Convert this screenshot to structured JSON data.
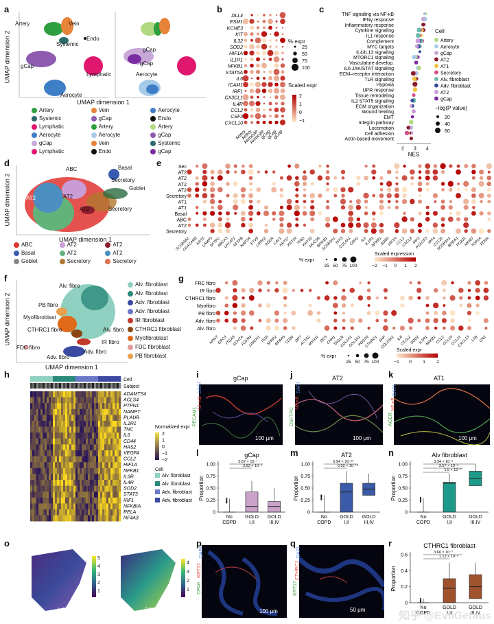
{
  "panel_labels": [
    "a",
    "b",
    "c",
    "d",
    "e",
    "f",
    "g",
    "h",
    "i",
    "j",
    "k",
    "l",
    "m",
    "n",
    "o",
    "p",
    "q",
    "r"
  ],
  "a": {
    "xlabel": "UMAP dimension 1",
    "ylabel": "UMAP dimension 2",
    "cluster_labels": [
      "Artery",
      "Vein",
      "Systemic",
      "Endo",
      "gCap",
      "Lymphatic",
      "Aerocyte"
    ],
    "right_cluster_labels": [
      "gCap",
      "gCap",
      "Aerocyte"
    ],
    "legend": [
      {
        "name": "Artery",
        "color": "#2e9e3e"
      },
      {
        "name": "Vein",
        "color": "#e8833a"
      },
      {
        "name": "Aerocyte",
        "color": "#3d7ec7"
      },
      {
        "name": "Systemic",
        "color": "#2b6a6b"
      },
      {
        "name": "gCap",
        "color": "#8e5bb0"
      },
      {
        "name": "Endo",
        "color": "#111111"
      },
      {
        "name": "Lymphatic",
        "color": "#e0176e"
      },
      {
        "name": "Artery",
        "color": "#2e9e3e"
      },
      {
        "name": "Artery",
        "color": "#b0d982"
      },
      {
        "name": "Aerocyte",
        "color": "#3d7ec7"
      },
      {
        "name": "Aerocyte",
        "color": "#a6cbe8"
      },
      {
        "name": "gCap",
        "color": "#8e5bb0"
      },
      {
        "name": "gCap",
        "color": "#c8a8d8"
      },
      {
        "name": "Vein",
        "color": "#e8833a"
      },
      {
        "name": "Systemic",
        "color": "#2b6a6b"
      },
      {
        "name": "Lymphatic",
        "color": "#e0176e"
      },
      {
        "name": "Endo",
        "color": "#111111"
      },
      {
        "name": "gCap",
        "color": "#7a2da0"
      }
    ]
  },
  "b": {
    "genes": [
      "DLL4",
      "ESM1",
      "KCNE3",
      "KIT",
      "IL32",
      "SOD2",
      "HIF1A",
      "IL1R1",
      "NFKB1",
      "STAT5A",
      "IL6",
      "ICAM1",
      "IRF1",
      "CX3CL1",
      "IL4R",
      "CCL2",
      "CSF3",
      "CXCL10"
    ],
    "columns": [
      "Artery",
      "Artery",
      "Aerocyte",
      "Aerocyte",
      "gCap",
      "gCap",
      "gCap"
    ],
    "size_legend_title": "% expr",
    "size_legend": [
      "25",
      "50",
      "75",
      "100"
    ],
    "color_legend_title": "Scaled expr",
    "color_legend": [
      "2",
      "1",
      "0",
      "−1"
    ]
  },
  "c": {
    "pathways": [
      "TNF signaling via NF-κB",
      "IFNγ response",
      "Inflammatory response",
      "Cytokine signaling",
      "IL1 response",
      "Complement",
      "MYC targets",
      "IL4/IL13 signaling",
      "MTORC1 signaling",
      "Vasculature develop.",
      "IL6 JAK/STAT signaling",
      "ECM–receptor interaction",
      "TLR signaling",
      "Hypoxia",
      "UPR response",
      "Tissue remodeling",
      "IL2 STAT5 signaling",
      "ECM organization",
      "Wound healing",
      "EMT",
      "Integrin pathway",
      "Locomotion",
      "Cell adhesion",
      "Actin-based movement"
    ],
    "nes": [
      3.9,
      3.8,
      3.8,
      3.7,
      3.5,
      3.6,
      3.4,
      3.4,
      3.3,
      3.1,
      3.3,
      3.1,
      3.2,
      3.0,
      3.0,
      2.9,
      2.9,
      2.8,
      2.9,
      2.8,
      2.7,
      2.7,
      2.7,
      2.7
    ],
    "xlabel": "NES",
    "xticks": [
      "2",
      "3",
      "4"
    ],
    "ylabel": "Pathway",
    "cell_legend_title": "Cell",
    "cell_legend": [
      {
        "name": "Artery",
        "color": "#b0d982"
      },
      {
        "name": "Aerocyte",
        "color": "#a6cbe8"
      },
      {
        "name": "gCap",
        "color": "#c8a8d8"
      },
      {
        "name": "AT2",
        "color": "#8a1c2b"
      },
      {
        "name": "AT1",
        "color": "#f0c040"
      },
      {
        "name": "Secretory",
        "color": "#d6508c"
      },
      {
        "name": "Alv. fibroblast",
        "color": "#6fb9a8"
      },
      {
        "name": "Adv. fibroblast",
        "color": "#3b4aa0"
      },
      {
        "name": "AT2",
        "color": "#c99cd6"
      },
      {
        "name": "gCap",
        "color": "#7a2da0"
      }
    ],
    "p_legend_title": "−log(P value)",
    "p_legend": [
      "20",
      "40",
      "60"
    ]
  },
  "d": {
    "xlabel": "UMAP dimension 1",
    "ylabel": "UMAP dimension 2",
    "cluster_labels": [
      "ABC",
      "Basal",
      "Secretory",
      "Goblet",
      "AT2",
      "AT2",
      "AT2",
      "Secretory"
    ],
    "legend": [
      {
        "name": "ABC",
        "color": "#e0342f"
      },
      {
        "name": "AT2",
        "color": "#c99cd6"
      },
      {
        "name": "AT2",
        "color": "#8a1c2b"
      },
      {
        "name": "Basal",
        "color": "#3b5bb0"
      },
      {
        "name": "AT2",
        "color": "#62b37a"
      },
      {
        "name": "AT2",
        "color": "#4a8fbf"
      },
      {
        "name": "Goblet",
        "color": "#888888"
      },
      {
        "name": "Secretory",
        "color": "#b07830"
      },
      {
        "name": "Secretory",
        "color": "#e07050"
      }
    ]
  },
  "e": {
    "rows": [
      "Sec",
      "AT2",
      "AT2",
      "AT2",
      "AT2",
      "Secretory",
      "AT1",
      "AT1",
      "Basal",
      "ABC",
      "AT2",
      "Secretory"
    ],
    "genes": [
      "SCGB3A2",
      "CEACAM5",
      "KRT5",
      "LAMP3",
      "SFTPC",
      "ABCA3",
      "LPCAT1",
      "SFTPB",
      "NAPSA",
      "ETV5",
      "LRRK2",
      "AGER",
      "CAV1",
      "KRT17",
      "KRT14",
      "TP63",
      "KRT15",
      "MUC5B",
      "BPIFB1",
      "SCGB1A1",
      "TFF3",
      "COL4A1",
      "CDH2",
      "IL6",
      "IL1R1",
      "NFKB1",
      "SOD2",
      "HIF1A",
      "CCL2",
      "CXCL8",
      "IRF1",
      "POU2F3",
      "IRF4",
      "CCL20",
      "SCGB3A1",
      "BPIFA1",
      "FOXJ1",
      "MKI67",
      "TOP2A",
      "PCNA"
    ],
    "size_legend_title": "% expr",
    "size_legend": [
      "25",
      "50",
      "75",
      "100"
    ],
    "color_legend_title": "Scaled expression",
    "color_legend": [
      "−2",
      "−1",
      "0",
      "1",
      "2"
    ]
  },
  "f": {
    "xlabel": "UMAP dimension 1",
    "ylabel": "UMAP dimension 2",
    "cluster_labels": [
      "Alv. fibro",
      "PB fibro",
      "Myofibroblast",
      "CTHRC1 fibro",
      "Alv. fibro",
      "IR fibro",
      "FDC fibro",
      "Adv. fibro",
      "Adv. fibro"
    ],
    "legend": [
      {
        "name": "Alv. fibroblast",
        "color": "#8fd0c0"
      },
      {
        "name": "Alv. fibroblast",
        "color": "#2a8a7a"
      },
      {
        "name": "Adv. fibroblast",
        "color": "#3b4aa0"
      },
      {
        "name": "Adv. fibroblast",
        "color": "#6a78c8"
      },
      {
        "name": "IR fibroblast",
        "color": "#c0392b"
      },
      {
        "name": "CTHRC1 fibroblast",
        "color": "#8b4513"
      },
      {
        "name": "Myofibroblast",
        "color": "#e06a1a"
      },
      {
        "name": "FDC fibroblast",
        "color": "#e09a9a"
      },
      {
        "name": "PB fibroblast",
        "color": "#e8a050"
      }
    ]
  },
  "g": {
    "rows": [
      "FRC fibro",
      "IR fibro",
      "CTHRC1 fibro",
      "Myofibro",
      "PB fibro",
      "Adv. fibro",
      "Alv. fibro"
    ],
    "genes": [
      "NPNT",
      "GPC3",
      "ITGA8",
      "SCN7A",
      "FGFR4",
      "LIMCH1",
      "PI16",
      "SFRP2",
      "MFAP5",
      "CD34",
      "DPT",
      "ACTA2",
      "MYH11",
      "DES",
      "CNN1",
      "TAGLN",
      "COL1A1",
      "COL3A1",
      "POSTN",
      "CTHRC1",
      "FAP",
      "COL10A1",
      "IL6",
      "CXCL2",
      "SOD2",
      "IL1R1",
      "NFKB1",
      "CCL2",
      "CCL19",
      "CCL21",
      "CXCL13",
      "LTB",
      "CR2"
    ],
    "size_legend_title": "% expr",
    "size_legend": [
      "25",
      "50",
      "75",
      "100"
    ],
    "color_legend_title": "Scaled expr",
    "color_legend": [
      "−1",
      "0",
      "1",
      "2"
    ]
  },
  "h": {
    "genes": [
      "ADAMTS4",
      "ACLS4",
      "PTPN1",
      "NAMPT",
      "PLAUR",
      "IL1R1",
      "TNC",
      "IL6",
      "CD44",
      "HAS2",
      "VEGFA",
      "CCL2",
      "HIF1A",
      "NFKB1",
      "IL6R",
      "IL4R",
      "SOD2",
      "STAT3",
      "IRF1",
      "NFKBIA",
      "RELA",
      "NF4A3"
    ],
    "top_labels": [
      "Cell",
      "Subject"
    ],
    "expr_legend_title": "Normalized expr",
    "expr_legend": [
      "2",
      "1",
      "0",
      "−1",
      "−2"
    ],
    "cell_legend_title": "Cell",
    "cell_legend": [
      {
        "name": "Alv. fibroblast",
        "color": "#8fd0c0"
      },
      {
        "name": "Alv. fibroblast",
        "color": "#2a8a7a"
      },
      {
        "name": "Adv. fibroblast",
        "color": "#6a78c8"
      },
      {
        "name": "Adv. fibroblast",
        "color": "#3b4aa0"
      }
    ]
  },
  "i": {
    "title": "gCap",
    "channels": [
      "PECAM1",
      "NF-κB",
      "DAPI"
    ],
    "scale": "100 μm"
  },
  "j": {
    "title": "AT2",
    "channels": [
      "DSFTPC",
      "NF-κB",
      "DAPI"
    ],
    "scale": "100 μm"
  },
  "k": {
    "title": "AT1",
    "channels": [
      "AGER",
      "NF-κB",
      "DAPI"
    ],
    "scale": "100 μm"
  },
  "l": {
    "title": "gCap",
    "ylabel": "Proportion",
    "yticks": [
      "0",
      "0.25",
      "0.50",
      "0.75",
      "1.00"
    ],
    "groups": [
      "No COPD",
      "GOLD I,II",
      "GOLD III,IV"
    ],
    "p_values": [
      "5.67 × 10⁻⁷",
      "3.63 × 10⁻⁵"
    ],
    "color": "#c8a2c8",
    "box_data": [
      {
        "q1": 0.0,
        "median": 0.0,
        "q3": 0.0,
        "max": 0.28
      },
      {
        "q1": 0.0,
        "median": 0.12,
        "q3": 0.42,
        "max": 0.65
      },
      {
        "q1": 0.0,
        "median": 0.12,
        "q3": 0.22,
        "max": 0.5
      }
    ]
  },
  "m": {
    "title": "AT2",
    "ylabel": "Proportion",
    "yticks": [
      "0",
      "0.25",
      "0.50",
      "0.75",
      "1.00"
    ],
    "groups": [
      "No COPD",
      "GOLD I,II",
      "GOLD III,IV"
    ],
    "p_values": [
      "5.94 × 10⁻²³",
      "6.02 × 10⁻¹⁸"
    ],
    "color": "#3b5aa8",
    "box_data": [
      {
        "q1": 0.0,
        "median": 0.0,
        "q3": 0.0,
        "max": 0.35
      },
      {
        "q1": 0.0,
        "median": 0.42,
        "q3": 0.6,
        "max": 0.85
      },
      {
        "q1": 0.35,
        "median": 0.48,
        "q3": 0.6,
        "max": 0.8
      }
    ]
  },
  "n": {
    "title": "Alv fibroblast",
    "ylabel": "Proportion",
    "yticks": [
      "0",
      "0.25",
      "0.50",
      "0.75",
      "1.00"
    ],
    "groups": [
      "No COPD",
      "GOLD I,II",
      "GOLD III,IV"
    ],
    "p_values": [
      "3.34 × 10⁻⁵",
      "3.57 × 10⁻⁶",
      "1.5 × 10⁻¹⁷"
    ],
    "color": "#1e9a8a",
    "box_data": [
      {
        "q1": 0.0,
        "median": 0.0,
        "q3": 0.0,
        "max": 0.3
      },
      {
        "q1": 0.0,
        "median": 0.6,
        "q3": 0.62,
        "max": 0.8
      },
      {
        "q1": 0.55,
        "median": 0.7,
        "q3": 0.85,
        "max": 1.0
      }
    ]
  },
  "o": {
    "genes": [
      "LAMP3",
      "SCGB3A2"
    ],
    "scale1": [
      "5",
      "4",
      "3",
      "2",
      "1"
    ],
    "scale2": [
      "4",
      "3",
      "2",
      "1"
    ]
  },
  "p": {
    "channels": [
      "CPA6",
      "KRT17",
      "DAPI"
    ],
    "scale": "100 μm"
  },
  "q": {
    "channels": [
      "KRT17",
      "CTHRC1",
      "DAPI"
    ],
    "scale": "50 μm"
  },
  "r": {
    "title": "CTHRC1 fibroblast",
    "ylabel": "Proportion",
    "yticks": [
      "0",
      "0.2",
      "0.4",
      "0.6"
    ],
    "groups": [
      "No COPD",
      "GOLD I,II",
      "GOLD III,IV"
    ],
    "p_values": [
      "3.66 × 10⁻⁷",
      "1.12 × 10⁻⁵"
    ],
    "color": "#a0522d",
    "box_data": [
      {
        "q1": 0.0,
        "median": 0.0,
        "q3": 0.0,
        "max": 0.05
      },
      {
        "q1": 0.0,
        "median": 0.18,
        "q3": 0.3,
        "max": 0.5
      },
      {
        "q1": 0.05,
        "median": 0.2,
        "q3": 0.35,
        "max": 0.5
      }
    ]
  },
  "watermark": "知乎 @EvilGenius",
  "colors": {
    "accent_red": "#c0392b",
    "dark_red": "#8b0000",
    "heat_low": "#fde8c8",
    "heat_high": "#b30000"
  }
}
